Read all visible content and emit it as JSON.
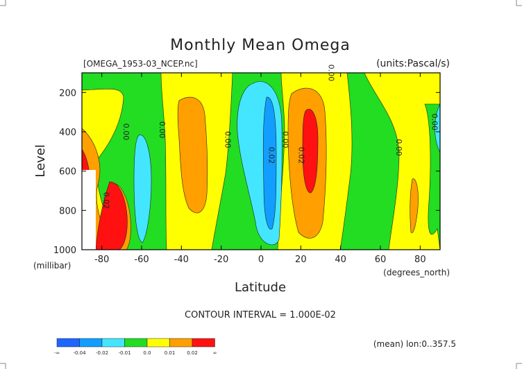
{
  "chart_data": {
    "type": "heatmap",
    "title": "Monthly Mean Omega",
    "source_label": "[OMEGA_1953-03_NCEP.nc]",
    "units_label": "(units:Pascal/s)",
    "xlabel": "Latitude",
    "x_units": "(degrees_north)",
    "ylabel": "Level",
    "y_units": "(millibar)",
    "xlim": [
      -90,
      90
    ],
    "ylim": [
      1000,
      100
    ],
    "x_ticks": [
      -80,
      -60,
      -40,
      -20,
      0,
      20,
      40,
      60,
      80
    ],
    "x_tick_labels": [
      "-80",
      "-60",
      "-40",
      "-20",
      "0",
      "20",
      "40",
      "60",
      "80"
    ],
    "y_ticks": [
      200,
      400,
      600,
      800,
      1000
    ],
    "y_tick_labels": [
      "200",
      "400",
      "600",
      "800",
      "1000"
    ],
    "contour_interval_label": "CONTOUR INTERVAL = 1.000E-02",
    "mean_label": "(mean) lon:0..357.5",
    "contour_labels": [
      {
        "text": "0.00",
        "lat": -69,
        "level": 400
      },
      {
        "text": "0.00",
        "lat": -51,
        "level": 390
      },
      {
        "text": "0.00",
        "lat": -18,
        "level": 440
      },
      {
        "text": "0.00",
        "lat": 11,
        "level": 440
      },
      {
        "text": "0.02",
        "lat": 4,
        "level": 520
      },
      {
        "text": "0.02",
        "lat": 19,
        "level": 520
      },
      {
        "text": "0.00",
        "lat": 34,
        "level": 100
      },
      {
        "text": "0.00",
        "lat": 68,
        "level": 480
      },
      {
        "text": "0.00",
        "lat": 86,
        "level": 350
      },
      {
        "text": "0.02",
        "lat": -79,
        "level": 750
      }
    ],
    "colorbar": {
      "colors": [
        "#1f66ff",
        "#119eff",
        "#44e6ff",
        "#22dd22",
        "#ffff00",
        "#ff9f00",
        "#ff1111"
      ],
      "labels": [
        "-∞",
        "-0.04",
        "-0.02",
        "-0.01",
        "0.0",
        "0.01",
        "0.02",
        "∞"
      ]
    }
  }
}
